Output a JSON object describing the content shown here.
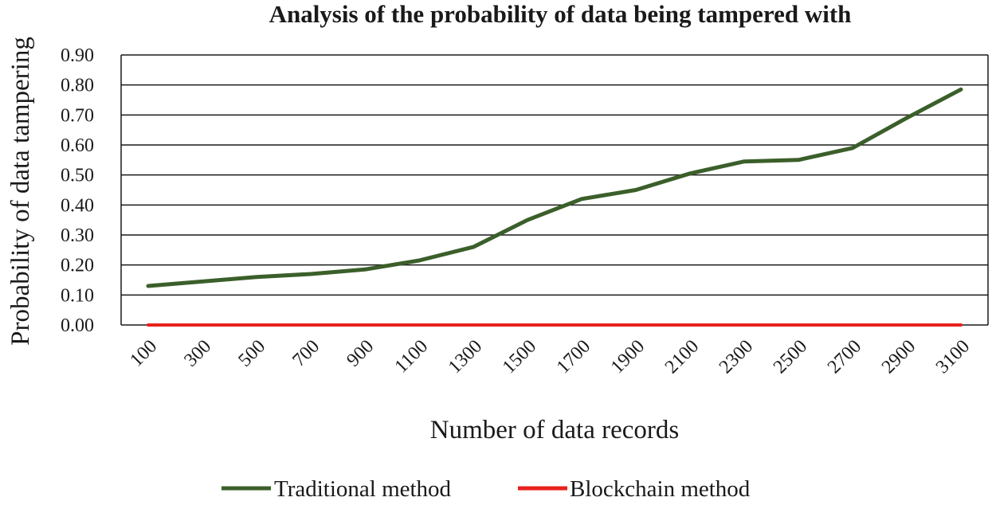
{
  "chart_data": {
    "type": "line",
    "title": "Analysis of the probability of data being tampered with",
    "xlabel": "Number of data records",
    "ylabel": "Probability of data tampering",
    "categories": [
      "100",
      "300",
      "500",
      "700",
      "900",
      "1100",
      "1300",
      "1500",
      "1700",
      "1900",
      "2100",
      "2300",
      "2500",
      "2700",
      "2900",
      "3100"
    ],
    "yticks": [
      "0.00",
      "0.10",
      "0.20",
      "0.30",
      "0.40",
      "0.50",
      "0.60",
      "0.70",
      "0.80",
      "0.90"
    ],
    "ylim": [
      0,
      0.9
    ],
    "grid": true,
    "legend_position": "bottom",
    "series": [
      {
        "name": "Traditional method",
        "color": "#3b5f2a",
        "values": [
          0.13,
          0.145,
          0.16,
          0.17,
          0.185,
          0.215,
          0.26,
          0.35,
          0.42,
          0.45,
          0.505,
          0.545,
          0.55,
          0.59,
          0.69,
          0.785
        ]
      },
      {
        "name": "Blockchain method",
        "color": "#e8211c",
        "values": [
          0,
          0,
          0,
          0,
          0,
          0,
          0,
          0,
          0,
          0,
          0,
          0,
          0,
          0,
          0,
          0
        ]
      }
    ]
  }
}
